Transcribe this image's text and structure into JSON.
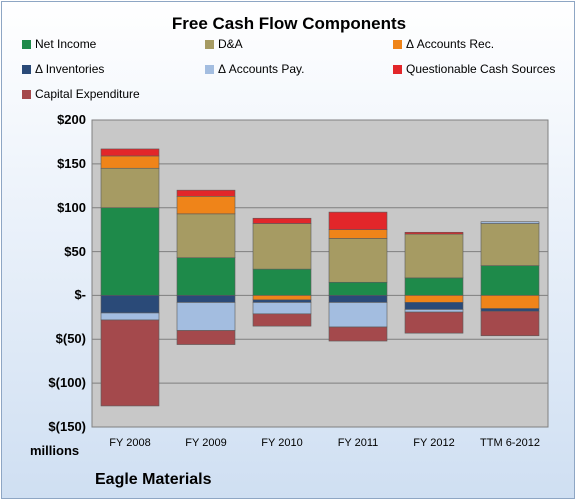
{
  "chart_data": {
    "type": "bar",
    "stacked": true,
    "title": "Free Cash Flow Components",
    "unit_label": "millions",
    "footer": "Eagle Materials",
    "categories": [
      "FY 2008",
      "FY 2009",
      "FY 2010",
      "FY 2011",
      "FY 2012",
      "TTM 6-2012"
    ],
    "ylim": [
      -150,
      200
    ],
    "yticks": [
      {
        "value": 200,
        "label": "$200"
      },
      {
        "value": 150,
        "label": "$150"
      },
      {
        "value": 100,
        "label": "$100"
      },
      {
        "value": 50,
        "label": "$50"
      },
      {
        "value": 0,
        "label": "$-"
      },
      {
        "value": -50,
        "label": "$(50)"
      },
      {
        "value": -100,
        "label": "$(100)"
      },
      {
        "value": -150,
        "label": "$(150)"
      }
    ],
    "grid": true,
    "legend_position": "top",
    "series": [
      {
        "name": "Net Income",
        "color": "#1e8a4a",
        "values": [
          100,
          43,
          30,
          15,
          20,
          34
        ]
      },
      {
        "name": "D&A",
        "color": "#a69b63",
        "values": [
          45,
          50,
          52,
          50,
          50,
          48
        ]
      },
      {
        "name": "Δ Accounts Rec.",
        "color": "#ef8419",
        "values": [
          14,
          20,
          -5,
          10,
          -8,
          -15
        ]
      },
      {
        "name": "Δ Inventories",
        "color": "#2a4a78",
        "values": [
          -20,
          -8,
          -3,
          -8,
          -8,
          -3
        ]
      },
      {
        "name": "Δ Accounts Pay.",
        "color": "#a3bde0",
        "values": [
          -8,
          -32,
          -13,
          -28,
          -3,
          2
        ]
      },
      {
        "name": "Questionable Cash Sources",
        "color": "#e2262a",
        "values": [
          8,
          7,
          6,
          20,
          2,
          0
        ]
      },
      {
        "name": "Capital Expenditure",
        "color": "#a4494c",
        "values": [
          -98,
          -16,
          -14,
          -16,
          -24,
          -28
        ]
      }
    ]
  }
}
